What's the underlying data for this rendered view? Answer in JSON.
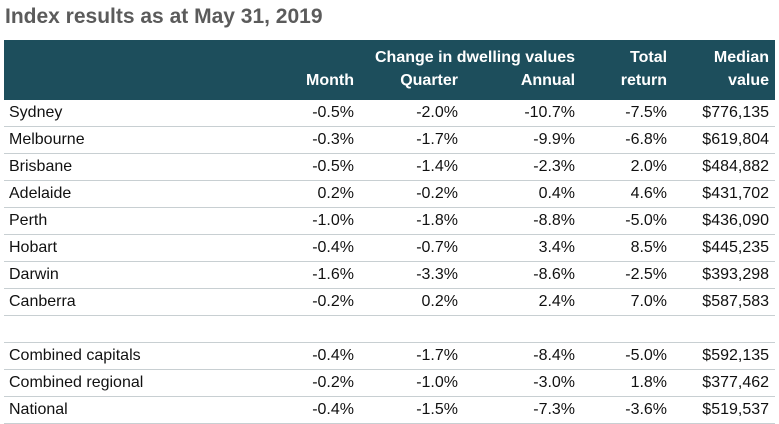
{
  "title": "Index results as at May 31, 2019",
  "header": {
    "group_label": "Change in dwelling values",
    "col_month": "Month",
    "col_quarter": "Quarter",
    "col_annual": "Annual",
    "col_total_top": "Total",
    "col_total_bottom": "return",
    "col_median_top": "Median",
    "col_median_bottom": "value"
  },
  "rows": [
    {
      "name": "Sydney",
      "month": "-0.5%",
      "quarter": "-2.0%",
      "annual": "-10.7%",
      "total": "-7.5%",
      "median": "$776,135"
    },
    {
      "name": "Melbourne",
      "month": "-0.3%",
      "quarter": "-1.7%",
      "annual": "-9.9%",
      "total": "-6.8%",
      "median": "$619,804"
    },
    {
      "name": "Brisbane",
      "month": "-0.5%",
      "quarter": "-1.4%",
      "annual": "-2.3%",
      "total": "2.0%",
      "median": "$484,882"
    },
    {
      "name": "Adelaide",
      "month": "0.2%",
      "quarter": "-0.2%",
      "annual": "0.4%",
      "total": "4.6%",
      "median": "$431,702"
    },
    {
      "name": "Perth",
      "month": "-1.0%",
      "quarter": "-1.8%",
      "annual": "-8.8%",
      "total": "-5.0%",
      "median": "$436,090"
    },
    {
      "name": "Hobart",
      "month": "-0.4%",
      "quarter": "-0.7%",
      "annual": "3.4%",
      "total": "8.5%",
      "median": "$445,235"
    },
    {
      "name": "Darwin",
      "month": "-1.6%",
      "quarter": "-3.3%",
      "annual": "-8.6%",
      "total": "-2.5%",
      "median": "$393,298"
    },
    {
      "name": "Canberra",
      "month": "-0.2%",
      "quarter": "0.2%",
      "annual": "2.4%",
      "total": "7.0%",
      "median": "$587,583"
    }
  ],
  "summary_rows": [
    {
      "name": "Combined capitals",
      "month": "-0.4%",
      "quarter": "-1.7%",
      "annual": "-8.4%",
      "total": "-5.0%",
      "median": "$592,135"
    },
    {
      "name": "Combined regional",
      "month": "-0.2%",
      "quarter": "-1.0%",
      "annual": "-3.0%",
      "total": "1.8%",
      "median": "$377,462"
    },
    {
      "name": "National",
      "month": "-0.4%",
      "quarter": "-1.5%",
      "annual": "-7.3%",
      "total": "-3.6%",
      "median": "$519,537"
    }
  ],
  "colors": {
    "header_bg": "#1d4e5c",
    "title_text": "#5b5b5b",
    "row_rule": "#c8cfd2"
  }
}
